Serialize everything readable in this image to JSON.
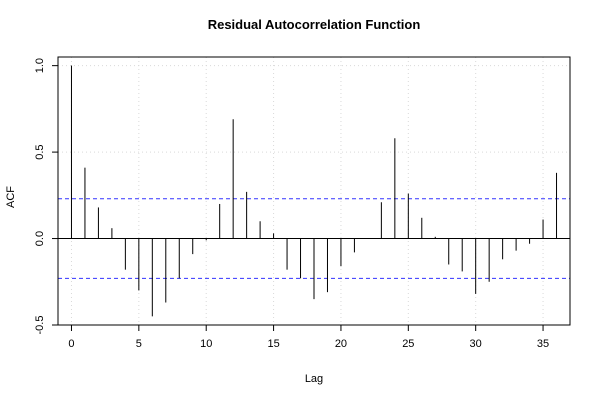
{
  "chart_data": {
    "type": "bar",
    "title": "Residual Autocorrelation Function",
    "xlabel": "Lag",
    "ylabel": "ACF",
    "xlim": [
      -1,
      37
    ],
    "ylim": [
      -0.5,
      1.05
    ],
    "x_ticks": [
      0,
      5,
      10,
      15,
      20,
      25,
      30,
      35
    ],
    "y_ticks": [
      -0.5,
      0.0,
      0.5,
      1.0
    ],
    "y_tick_labels": [
      "-0.5",
      "0.0",
      "0.5",
      "1.0"
    ],
    "grid": true,
    "confidence_bounds": [
      0.23,
      -0.23
    ],
    "lags": [
      0,
      1,
      2,
      3,
      4,
      5,
      6,
      7,
      8,
      9,
      10,
      11,
      12,
      13,
      14,
      15,
      16,
      17,
      18,
      19,
      20,
      21,
      22,
      23,
      24,
      25,
      26,
      27,
      28,
      29,
      30,
      31,
      32,
      33,
      34,
      35,
      36
    ],
    "values": [
      1.0,
      0.41,
      0.18,
      0.06,
      -0.18,
      -0.3,
      -0.45,
      -0.37,
      -0.23,
      -0.09,
      -0.01,
      0.2,
      0.69,
      0.27,
      0.1,
      0.03,
      -0.18,
      -0.23,
      -0.35,
      -0.31,
      -0.16,
      -0.08,
      0.0,
      0.21,
      0.58,
      0.26,
      0.12,
      0.01,
      -0.15,
      -0.19,
      -0.32,
      -0.25,
      -0.12,
      -0.07,
      -0.03,
      0.11,
      0.38
    ]
  }
}
